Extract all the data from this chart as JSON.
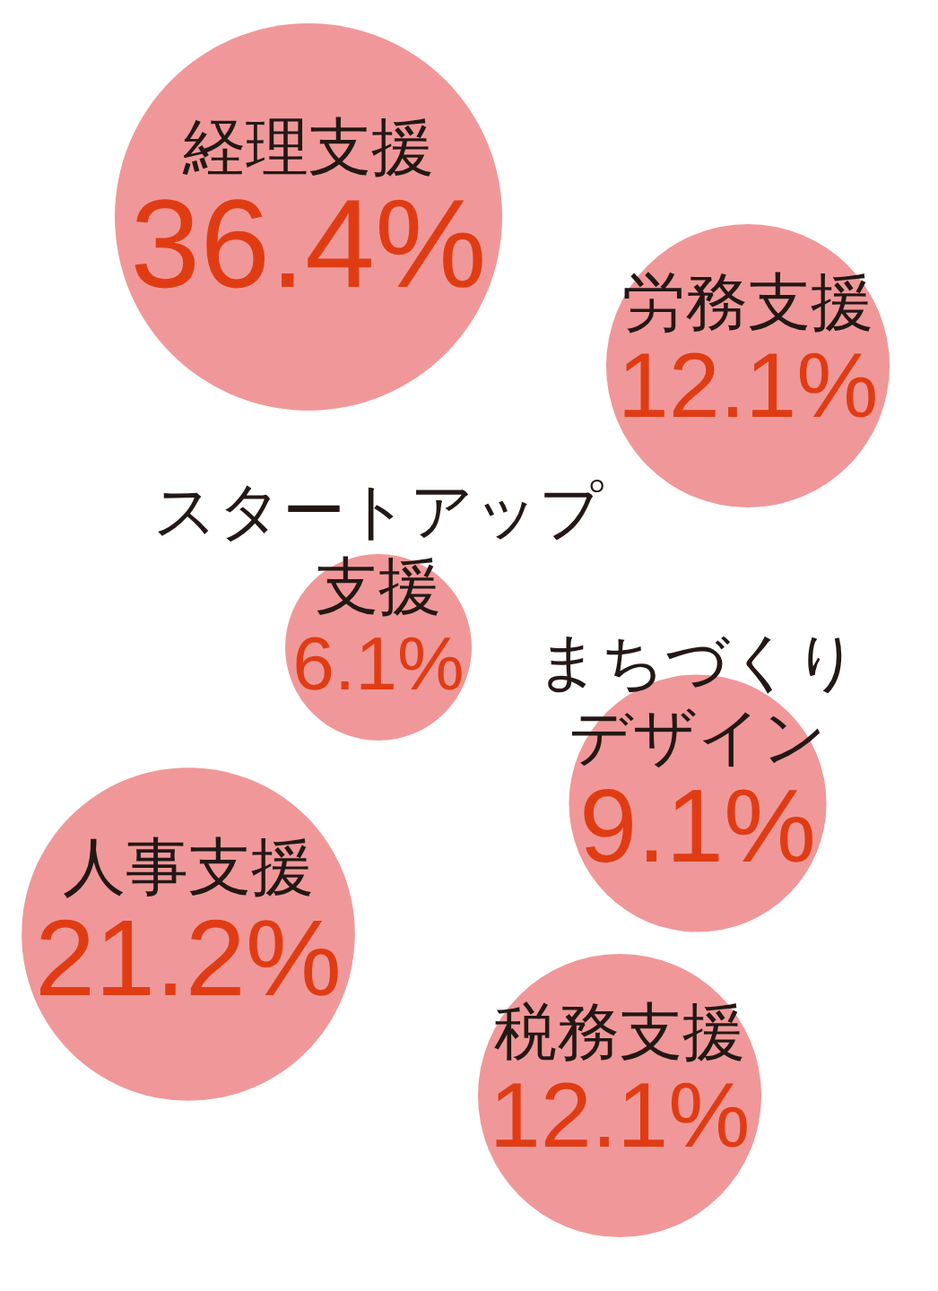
{
  "chart_data": {
    "type": "other",
    "categories": [
      "経理支援",
      "労務支援",
      "スタートアップ支援",
      "まちづくりデザイン",
      "人事支援",
      "税務支援"
    ],
    "values": [
      36.4,
      12.1,
      6.1,
      9.1,
      21.2,
      12.1
    ],
    "value_labels": [
      "36.4%",
      "12.1%",
      "6.1%",
      "9.1%",
      "21.2%",
      "12.1%"
    ],
    "colors": [
      "#f09899",
      "#f09899",
      "#f09899",
      "#f09899",
      "#f09899",
      "#f09899"
    ]
  }
}
